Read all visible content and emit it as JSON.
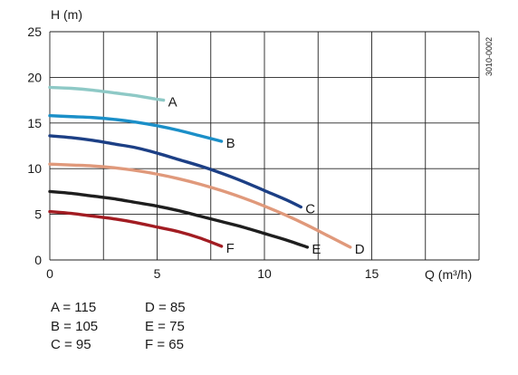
{
  "chart_data": {
    "type": "line",
    "title": "",
    "ylabel": "H (m)",
    "xlabel": "Q (m³/h)",
    "code": "3010-0002",
    "xlim": [
      0,
      20
    ],
    "ylim": [
      0,
      25
    ],
    "xticks": [
      0,
      5,
      10,
      15
    ],
    "yticks": [
      0,
      5,
      10,
      15,
      20,
      25
    ],
    "grid": true,
    "series": [
      {
        "name": "A",
        "color": "#8ec9c6",
        "x": [
          0,
          1,
          2,
          3,
          4,
          5,
          5.3
        ],
        "y": [
          18.9,
          18.8,
          18.6,
          18.3,
          18.0,
          17.6,
          17.5
        ]
      },
      {
        "name": "B",
        "color": "#1b8fc8",
        "x": [
          0,
          1,
          2,
          3,
          4,
          5,
          6,
          7,
          8
        ],
        "y": [
          15.8,
          15.7,
          15.6,
          15.4,
          15.1,
          14.7,
          14.2,
          13.6,
          13.0
        ]
      },
      {
        "name": "C",
        "color": "#1c3f85",
        "x": [
          0,
          1,
          2,
          3,
          4,
          5,
          6,
          7,
          8,
          9,
          10,
          11,
          11.7
        ],
        "y": [
          13.6,
          13.4,
          13.1,
          12.7,
          12.3,
          11.7,
          11.0,
          10.3,
          9.5,
          8.6,
          7.6,
          6.6,
          5.8
        ]
      },
      {
        "name": "D",
        "color": "#e0997b",
        "x": [
          0,
          1,
          2,
          3,
          4,
          5,
          6,
          7,
          8,
          9,
          10,
          11,
          12,
          13,
          14
        ],
        "y": [
          10.5,
          10.4,
          10.3,
          10.1,
          9.8,
          9.4,
          8.9,
          8.3,
          7.6,
          6.8,
          5.9,
          4.9,
          3.8,
          2.6,
          1.4
        ]
      },
      {
        "name": "E",
        "color": "#1e1e1e",
        "x": [
          0,
          1,
          2,
          3,
          4,
          5,
          6,
          7,
          8,
          9,
          10,
          11,
          12
        ],
        "y": [
          7.5,
          7.3,
          7.0,
          6.7,
          6.3,
          5.9,
          5.4,
          4.8,
          4.2,
          3.6,
          2.9,
          2.2,
          1.4
        ]
      },
      {
        "name": "F",
        "color": "#a21c22",
        "x": [
          0,
          1,
          2,
          3,
          4,
          5,
          6,
          7,
          8
        ],
        "y": [
          5.3,
          5.1,
          4.8,
          4.5,
          4.1,
          3.6,
          3.1,
          2.4,
          1.5
        ]
      }
    ],
    "legend_text": [
      [
        "A = 115",
        "D = 85"
      ],
      [
        "B = 105",
        "E = 75"
      ],
      [
        "C = 95",
        "F = 65"
      ]
    ]
  }
}
